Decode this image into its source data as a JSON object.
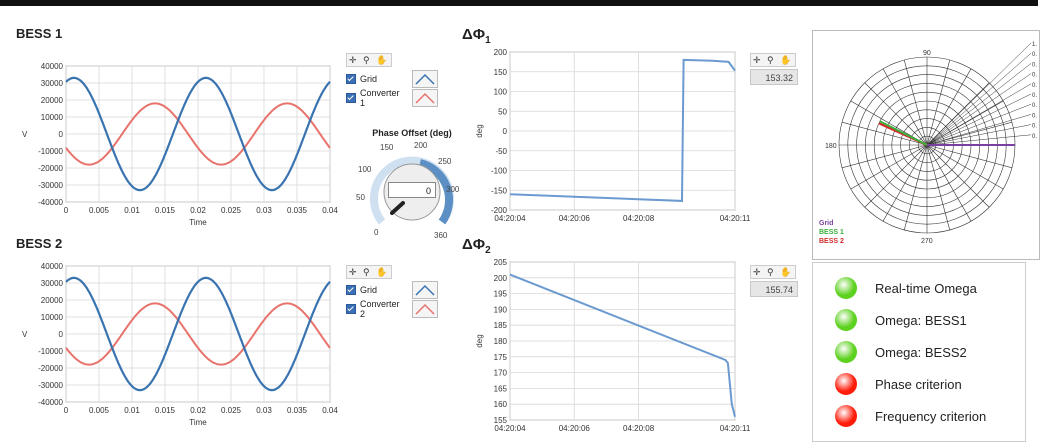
{
  "bess1": {
    "title": "BESS 1",
    "ylabel": "V",
    "xlabel": "Time",
    "yticks": [
      "40000",
      "30000",
      "20000",
      "10000",
      "0",
      "-10000",
      "-20000",
      "-30000",
      "-40000"
    ],
    "xticks": [
      "0",
      "0.005",
      "0.01",
      "0.015",
      "0.02",
      "0.025",
      "0.03",
      "0.035",
      "0.04"
    ],
    "legend": [
      "Grid",
      "Converter 1"
    ]
  },
  "bess2": {
    "title": "BESS 2",
    "ylabel": "V",
    "xlabel": "Time",
    "yticks": [
      "40000",
      "30000",
      "20000",
      "10000",
      "0",
      "-10000",
      "-20000",
      "-30000",
      "-40000"
    ],
    "xticks": [
      "0",
      "0.005",
      "0.01",
      "0.015",
      "0.02",
      "0.025",
      "0.03",
      "0.035",
      "0.04"
    ],
    "legend": [
      "Grid",
      "Converter 2"
    ]
  },
  "dphi1": {
    "title": "ΔΦ",
    "sub": "1",
    "ylabel": "deg",
    "yticks": [
      "200",
      "150",
      "100",
      "50",
      "0",
      "-50",
      "-100",
      "-150",
      "-200"
    ],
    "xticks": [
      "04:20:04",
      "04:20:06",
      "04:20:08",
      "04:20:11"
    ],
    "value": "153.32"
  },
  "dphi2": {
    "title": "ΔΦ",
    "sub": "2",
    "ylabel": "deg",
    "yticks": [
      "205",
      "200",
      "195",
      "190",
      "185",
      "180",
      "175",
      "170",
      "165",
      "160",
      "155"
    ],
    "xticks": [
      "04:20:04",
      "04:20:06",
      "04:20:08",
      "04:20:11"
    ],
    "value": "155.74"
  },
  "tools": "✛ ⚲ ✋",
  "knob": {
    "title": "Phase Offset (deg)",
    "value": "0",
    "labels": [
      "0",
      "50",
      "100",
      "150",
      "200",
      "250",
      "300",
      "360"
    ]
  },
  "polar": {
    "top": "90",
    "left": "180",
    "bottom": "270",
    "right_labels": [
      "1.",
      "0.",
      "0.",
      "0.",
      "0.",
      "0.",
      "0.",
      "0.",
      "0.",
      "0."
    ],
    "legend": [
      "Grid",
      "BESS 1",
      "BESS 2"
    ],
    "colors": {
      "grid": "#7a3fa0",
      "bess1": "#3bb03b",
      "bess2": "#d42a2a"
    }
  },
  "status": [
    {
      "label": "Real-time Omega",
      "color": "#5cd11e"
    },
    {
      "label": "Omega: BESS1",
      "color": "#5cd11e"
    },
    {
      "label": "Omega: BESS2",
      "color": "#5cd11e"
    },
    {
      "label": "Phase criterion",
      "color": "#ff1c0a"
    },
    {
      "label": "Frequency criterion",
      "color": "#ff1c0a"
    }
  ],
  "colors": {
    "grid_wave": "#3a74b0",
    "conv_wave": "#e8736c",
    "trend": "#6a9ad0"
  }
}
